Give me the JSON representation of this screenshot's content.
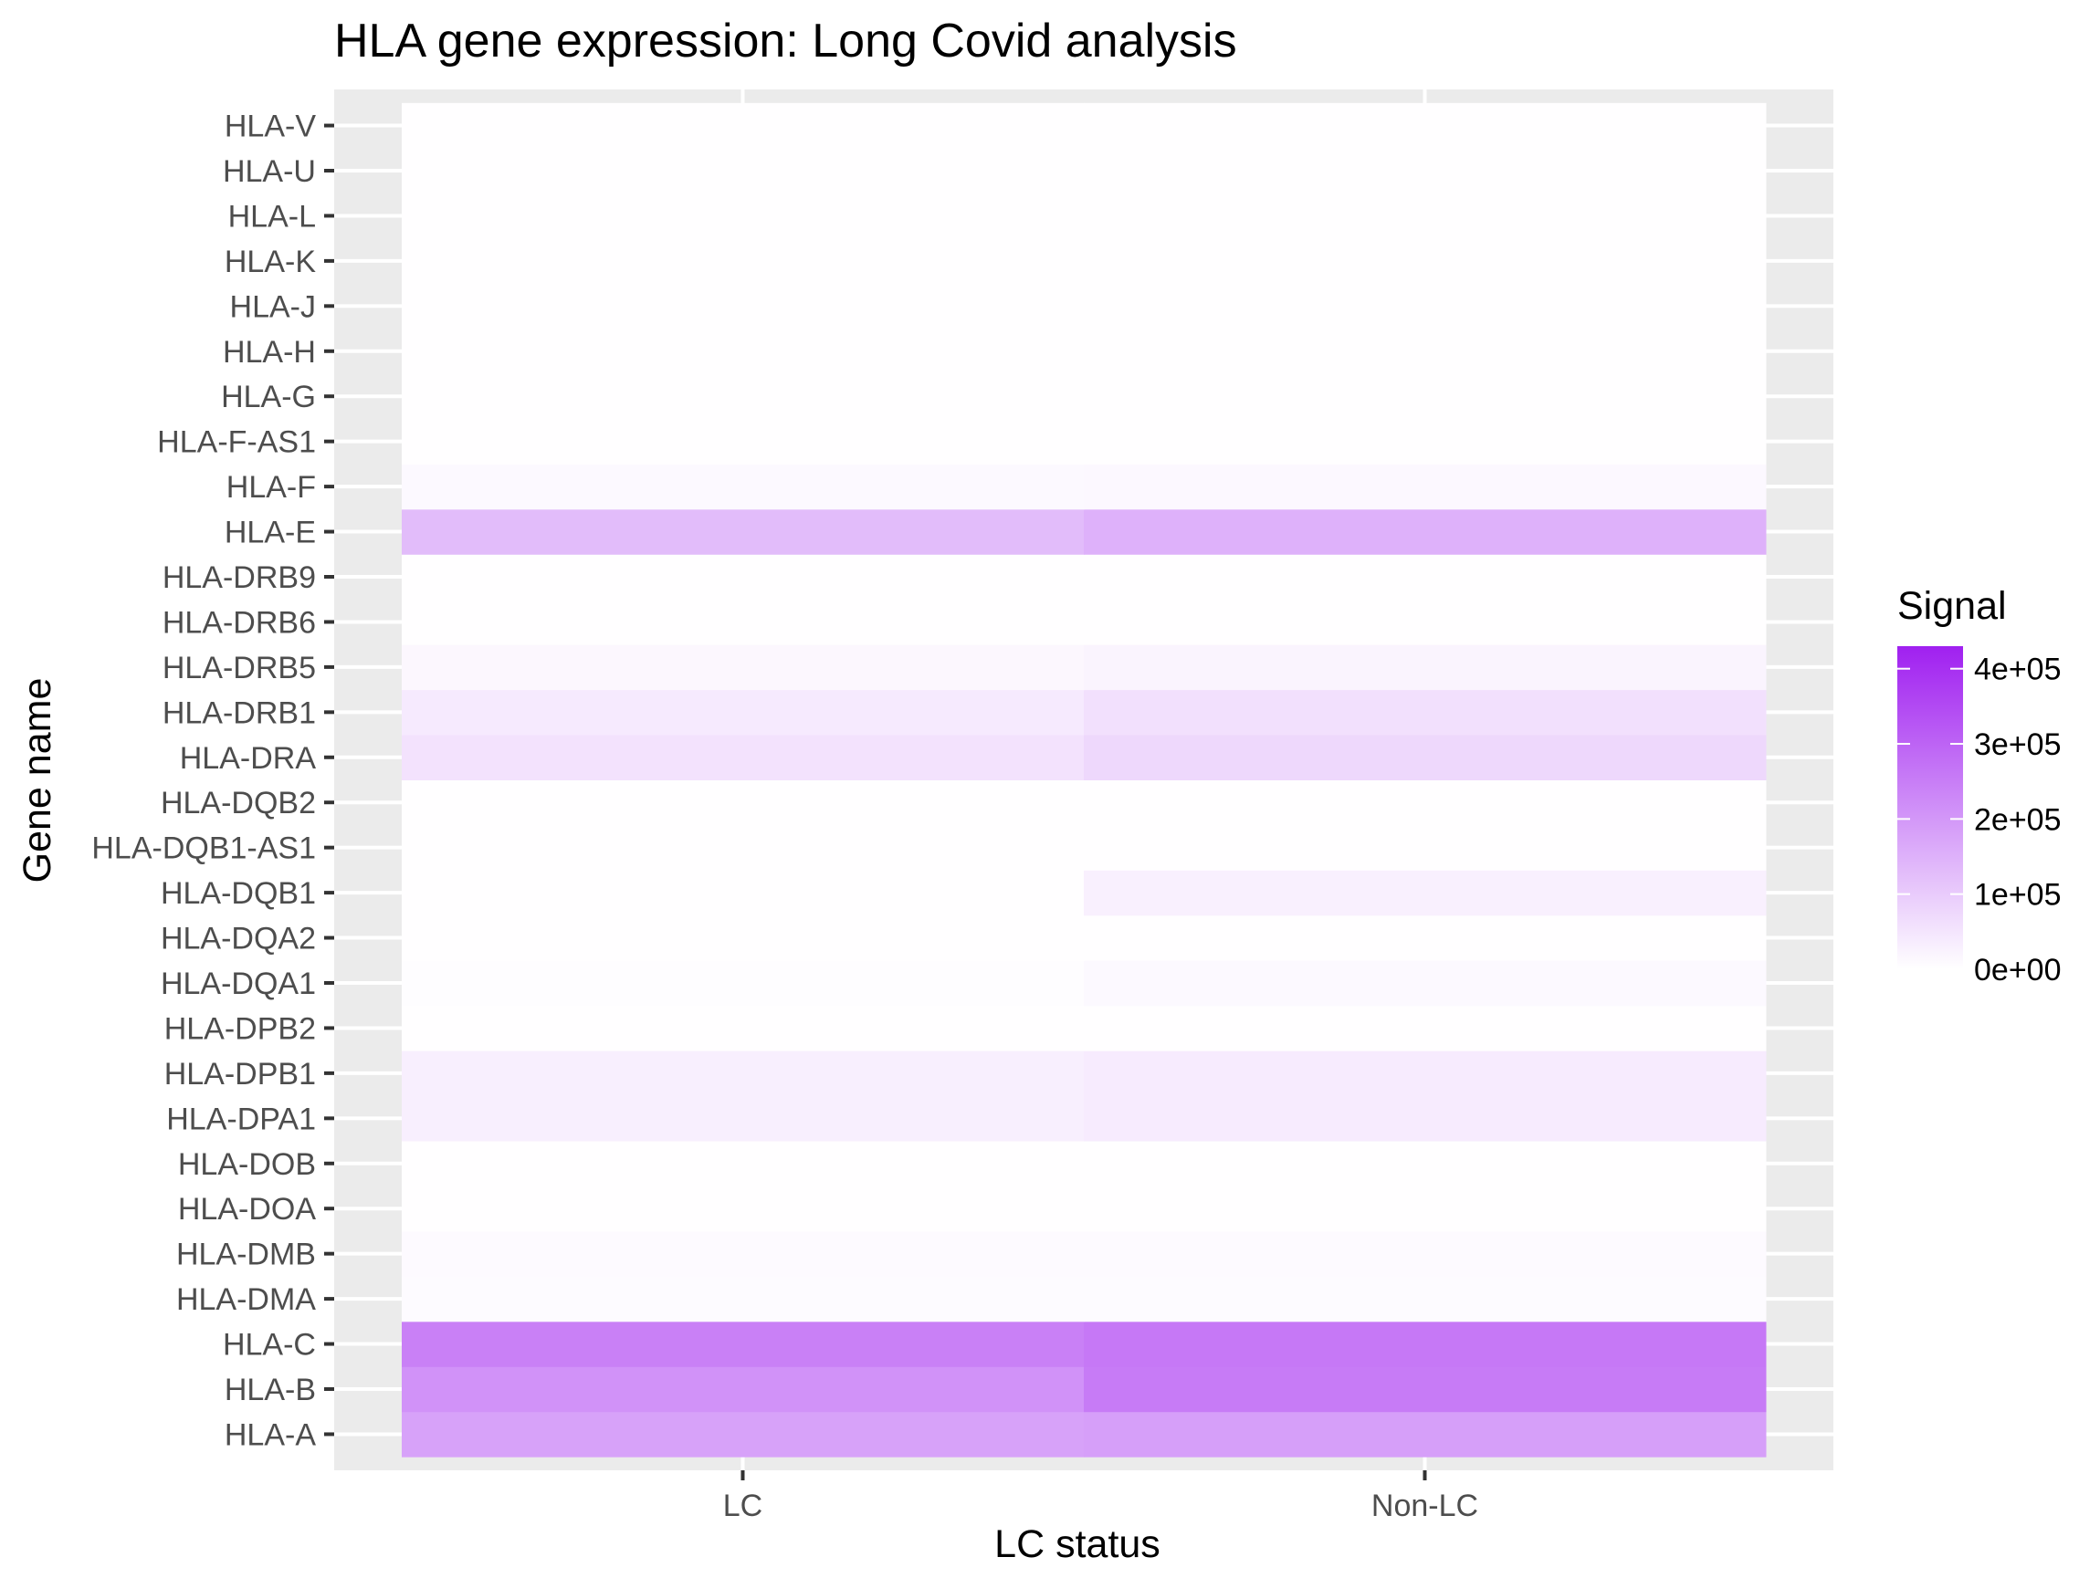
{
  "chart_data": {
    "type": "heatmap",
    "title": "HLA gene expression: Long Covid analysis",
    "xlabel": "LC status",
    "ylabel": "Gene name",
    "x": [
      "LC",
      "Non-LC"
    ],
    "y": [
      "HLA-A",
      "HLA-B",
      "HLA-C",
      "HLA-DMA",
      "HLA-DMB",
      "HLA-DOA",
      "HLA-DOB",
      "HLA-DPA1",
      "HLA-DPB1",
      "HLA-DPB2",
      "HLA-DQA1",
      "HLA-DQA2",
      "HLA-DQB1",
      "HLA-DQB1-AS1",
      "HLA-DQB2",
      "HLA-DRA",
      "HLA-DRB1",
      "HLA-DRB5",
      "HLA-DRB6",
      "HLA-DRB9",
      "HLA-E",
      "HLA-F",
      "HLA-F-AS1",
      "HLA-G",
      "HLA-H",
      "HLA-J",
      "HLA-K",
      "HLA-L",
      "HLA-U",
      "HLA-V"
    ],
    "values": [
      [
        180000,
        185000
      ],
      [
        210000,
        255000
      ],
      [
        245000,
        260000
      ],
      [
        8000,
        8000
      ],
      [
        9000,
        9000
      ],
      [
        2000,
        2000
      ],
      [
        2000,
        2000
      ],
      [
        30000,
        38000
      ],
      [
        30000,
        38000
      ],
      [
        1000,
        1000
      ],
      [
        3000,
        12000
      ],
      [
        1000,
        1000
      ],
      [
        2000,
        28000
      ],
      [
        1000,
        1000
      ],
      [
        1000,
        1000
      ],
      [
        55000,
        75000
      ],
      [
        40000,
        60000
      ],
      [
        15000,
        22000
      ],
      [
        1000,
        1000
      ],
      [
        1000,
        1000
      ],
      [
        130000,
        150000
      ],
      [
        12000,
        14000
      ],
      [
        2000,
        2000
      ],
      [
        2000,
        2000
      ],
      [
        2000,
        2000
      ],
      [
        1000,
        1000
      ],
      [
        2000,
        2000
      ],
      [
        1000,
        1000
      ],
      [
        1000,
        1000
      ],
      [
        1000,
        1000
      ]
    ],
    "legend": {
      "title": "Signal",
      "placement": "right",
      "min": 0,
      "max": 430000,
      "ticks": [
        {
          "value": 0,
          "label": "0e+00"
        },
        {
          "value": 100000,
          "label": "1e+05"
        },
        {
          "value": 200000,
          "label": "2e+05"
        },
        {
          "value": 300000,
          "label": "3e+05"
        },
        {
          "value": 400000,
          "label": "4e+05"
        }
      ],
      "colors": {
        "low": "#ffffff",
        "high": "#a020f0"
      }
    },
    "panel_background": "#ebebeb",
    "grid": true
  }
}
